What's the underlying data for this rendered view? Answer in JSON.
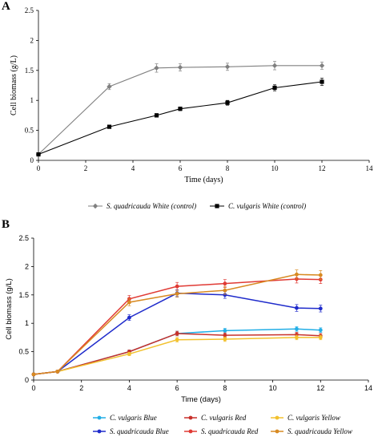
{
  "panels": [
    {
      "label": "A"
    },
    {
      "label": "B"
    }
  ],
  "chart_data": [
    {
      "type": "line",
      "panel": "A",
      "xlabel": "Time (days)",
      "ylabel": "Cell biomass (g/L)",
      "xlim": [
        0,
        14
      ],
      "ylim": [
        0,
        2.5
      ],
      "xticks": [
        0,
        2,
        4,
        6,
        8,
        10,
        12,
        14
      ],
      "yticks": [
        0,
        0.5,
        1,
        1.5,
        2,
        2.5
      ],
      "ytick_labels": [
        "0",
        "0.5",
        "1",
        "1.5",
        "2",
        "2.5"
      ],
      "grid": false,
      "legend_position": "bottom",
      "series": [
        {
          "name": "S. quadricauda White (control)",
          "color": "#808080",
          "marker": "diamond",
          "x": [
            0,
            3,
            5,
            6,
            8,
            10,
            12
          ],
          "y": [
            0.1,
            1.23,
            1.54,
            1.55,
            1.56,
            1.58,
            1.58
          ],
          "err": [
            0.01,
            0.05,
            0.07,
            0.06,
            0.06,
            0.07,
            0.06
          ]
        },
        {
          "name": "C. vulgaris White (control)",
          "color": "#000000",
          "marker": "square",
          "x": [
            0,
            3,
            5,
            6,
            8,
            10,
            12
          ],
          "y": [
            0.1,
            0.56,
            0.75,
            0.86,
            0.96,
            1.21,
            1.31
          ],
          "err": [
            0.01,
            0.02,
            0.03,
            0.03,
            0.04,
            0.05,
            0.06
          ]
        }
      ]
    },
    {
      "type": "line",
      "panel": "B",
      "xlabel": "Time (days)",
      "ylabel": "Cell biomass (g/L)",
      "xlim": [
        0,
        14
      ],
      "ylim": [
        0,
        2.5
      ],
      "xticks": [
        0,
        2,
        4,
        6,
        8,
        10,
        12,
        14
      ],
      "yticks": [
        0,
        0.5,
        1,
        1.5,
        2,
        2.5
      ],
      "ytick_labels": [
        "0",
        "0.5",
        "1",
        "1.5",
        "2",
        "2.5"
      ],
      "grid": false,
      "legend_position": "bottom",
      "series": [
        {
          "name": "C. vulgaris Blue",
          "color": "#22aee6",
          "marker": "circle",
          "x": [
            0,
            1,
            4,
            6,
            8,
            11,
            12
          ],
          "y": [
            0.1,
            0.15,
            0.5,
            0.82,
            0.87,
            0.9,
            0.88
          ],
          "err": [
            0.01,
            0.01,
            0.03,
            0.04,
            0.04,
            0.04,
            0.04
          ]
        },
        {
          "name": "C. vulgaris Red",
          "color": "#c8312b",
          "marker": "circle",
          "x": [
            0,
            1,
            4,
            6,
            8,
            11,
            12
          ],
          "y": [
            0.1,
            0.15,
            0.5,
            0.82,
            0.79,
            0.8,
            0.78
          ],
          "err": [
            0.01,
            0.01,
            0.03,
            0.04,
            0.04,
            0.04,
            0.04
          ]
        },
        {
          "name": "C. vulgaris Yellow",
          "color": "#f2c12e",
          "marker": "circle",
          "x": [
            0,
            1,
            4,
            6,
            8,
            11,
            12
          ],
          "y": [
            0.1,
            0.15,
            0.46,
            0.71,
            0.72,
            0.75,
            0.75
          ],
          "err": [
            0.01,
            0.01,
            0.03,
            0.04,
            0.04,
            0.04,
            0.04
          ]
        },
        {
          "name": "S. quadricauda Blue",
          "color": "#1f2bcb",
          "marker": "circle",
          "x": [
            0,
            1,
            4,
            6,
            8,
            11,
            12
          ],
          "y": [
            0.1,
            0.15,
            1.1,
            1.53,
            1.5,
            1.27,
            1.26
          ],
          "err": [
            0.01,
            0.01,
            0.05,
            0.06,
            0.06,
            0.06,
            0.06
          ]
        },
        {
          "name": "S. quadricauda Red",
          "color": "#e03a34",
          "marker": "circle",
          "x": [
            0,
            1,
            4,
            6,
            8,
            11,
            12
          ],
          "y": [
            0.1,
            0.15,
            1.43,
            1.65,
            1.7,
            1.78,
            1.77
          ],
          "err": [
            0.01,
            0.01,
            0.06,
            0.07,
            0.07,
            0.07,
            0.07
          ]
        },
        {
          "name": "S. quadricauda Yellow",
          "color": "#d88a22",
          "marker": "circle",
          "x": [
            0,
            1,
            4,
            6,
            8,
            11,
            12
          ],
          "y": [
            0.1,
            0.15,
            1.37,
            1.52,
            1.58,
            1.86,
            1.85
          ],
          "err": [
            0.01,
            0.01,
            0.06,
            0.06,
            0.07,
            0.08,
            0.08
          ]
        }
      ]
    }
  ]
}
